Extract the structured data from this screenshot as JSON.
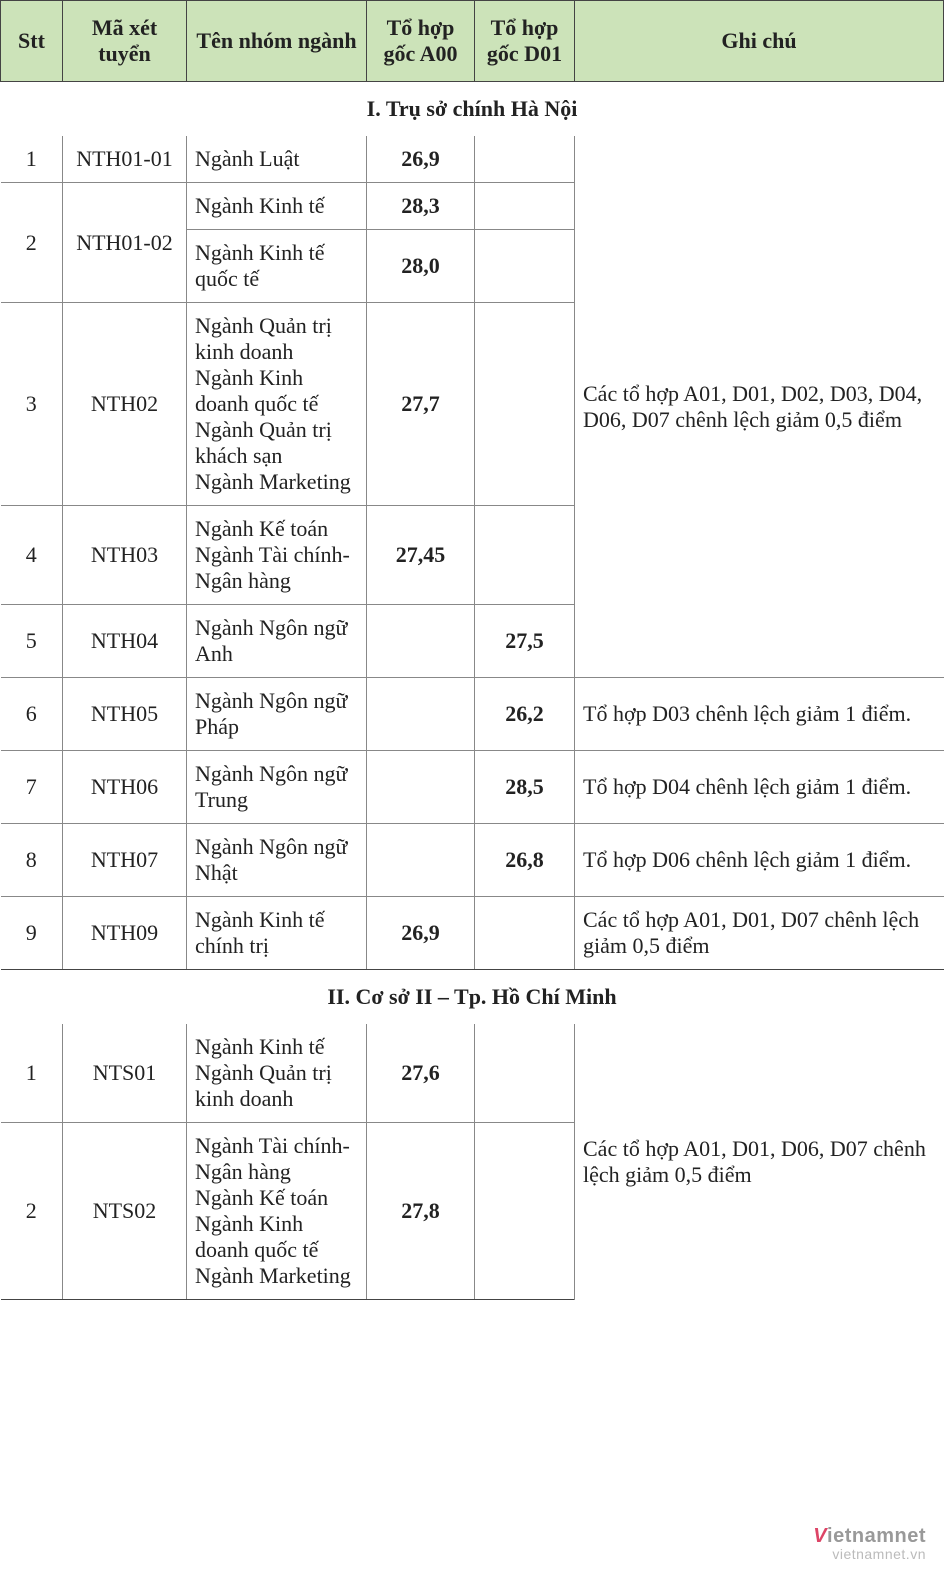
{
  "headers": {
    "stt": "Stt",
    "code": "Mã xét tuyển",
    "name": "Tên nhóm ngành",
    "a00": "Tổ hợp gốc A00",
    "d01": "Tổ hợp gốc D01",
    "note": "Ghi chú"
  },
  "sections": [
    {
      "title": "I. Trụ sở chính Hà Nội",
      "rows": [
        {
          "stt": "1",
          "code": "NTH01-01",
          "name": "Ngành Luật",
          "a00": "26,9",
          "d01": "",
          "note": "",
          "group_start": true,
          "group_note": "Các tổ hợp A01, D01, D02, D03, D04, D06, D07 chênh lệch giảm 0,5 điểm",
          "group_note_span": 6
        },
        {
          "stt": "2",
          "stt_span": 2,
          "code": "NTH01-02",
          "code_span": 2,
          "name": "Ngành Kinh tế",
          "a00": "28,3",
          "d01": ""
        },
        {
          "name": "Ngành Kinh tế quốc tế",
          "a00": "28,0",
          "d01": ""
        },
        {
          "stt": "3",
          "code": "NTH02",
          "name": "Ngành Quản trị kinh doanh\nNgành Kinh doanh quốc tế\nNgành Quản trị khách sạn\nNgành Marketing",
          "a00": "27,7",
          "d01": ""
        },
        {
          "stt": "4",
          "code": "NTH03",
          "name": "Ngành Kế toán\nNgành Tài chính- Ngân hàng",
          "a00": "27,45",
          "d01": ""
        },
        {
          "stt": "5",
          "code": "NTH04",
          "name": "Ngành Ngôn ngữ Anh",
          "a00": "",
          "d01": "27,5"
        },
        {
          "stt": "6",
          "code": "NTH05",
          "name": "Ngành Ngôn ngữ Pháp",
          "a00": "",
          "d01": "26,2",
          "note": "Tổ hợp D03 chênh lệch giảm 1 điểm."
        },
        {
          "stt": "7",
          "code": "NTH06",
          "name": "Ngành Ngôn ngữ Trung",
          "a00": "",
          "d01": "28,5",
          "note": "Tổ hợp D04 chênh lệch giảm 1 điểm."
        },
        {
          "stt": "8",
          "code": "NTH07",
          "name": "Ngành Ngôn ngữ Nhật",
          "a00": "",
          "d01": "26,8",
          "note": "Tổ hợp D06 chênh lệch giảm 1 điểm."
        },
        {
          "stt": "9",
          "code": "NTH09",
          "name": "Ngành Kinh tế chính trị",
          "a00": "26,9",
          "d01": "",
          "note": "Các tổ hợp A01, D01, D07 chênh lệch giảm 0,5 điểm"
        }
      ]
    },
    {
      "title": "II. Cơ sở II – Tp. Hồ Chí Minh",
      "rows": [
        {
          "stt": "1",
          "code": "NTS01",
          "name": "Ngành Kinh tế\nNgành Quản trị kinh doanh",
          "a00": "27,6",
          "d01": "",
          "group_start": true,
          "group_note": "Các tổ hợp A01, D01, D06, D07 chênh lệch giảm 0,5 điểm",
          "group_note_span": 2
        },
        {
          "stt": "2",
          "code": "NTS02",
          "name": "Ngành Tài chính-Ngân hàng\nNgành Kế toán\nNgành Kinh doanh quốc tế\nNgành Marketing",
          "a00": "27,8",
          "d01": ""
        }
      ]
    }
  ],
  "watermark": {
    "brand_v": "V",
    "brand_rest": "ietnamnet",
    "url": "vietnamnet.vn"
  },
  "colors": {
    "header_bg": "#cce3b9",
    "border": "#444",
    "inner_border": "#888",
    "text": "#222"
  }
}
